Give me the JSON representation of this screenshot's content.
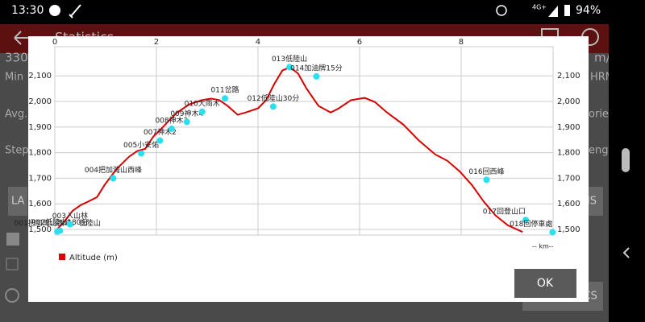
{
  "status_bar": {
    "time": "13:30",
    "network": "4G+",
    "battery": "94%"
  },
  "background": {
    "title": "Statistics",
    "texts": [
      "330",
      "Min",
      "Avg.",
      "Step",
      "LA",
      "m/h",
      "HRM",
      "ories",
      "ength",
      "NS",
      "HICS"
    ]
  },
  "dialog": {
    "button": "OK"
  },
  "chart_data": {
    "type": "line",
    "x_label": "-- km--",
    "xlim": [
      0,
      9.81
    ],
    "ylim": [
      1478,
      2214
    ],
    "xticks": [
      0,
      2,
      4,
      6,
      8
    ],
    "yticks": [
      {
        "value": 1500,
        "label": "1,500"
      },
      {
        "value": 1600,
        "label": "1,600"
      },
      {
        "value": 1700,
        "label": "1,700"
      },
      {
        "value": 1800,
        "label": "1,800"
      },
      {
        "value": 1900,
        "label": "1,900"
      },
      {
        "value": 2000,
        "label": "2,000"
      },
      {
        "value": 2100,
        "label": "2,100"
      }
    ],
    "grid": true,
    "series": [
      {
        "name": "Altitude (m)",
        "color": "#d60000",
        "x": [
          0,
          0.19,
          0.35,
          0.51,
          0.67,
          0.83,
          0.98,
          1.22,
          1.46,
          1.62,
          1.78,
          1.94,
          2.1,
          2.25,
          2.41,
          2.65,
          2.89,
          3.08,
          3.24,
          3.4,
          3.6,
          3.76,
          4.0,
          4.16,
          4.32,
          4.48,
          4.63,
          4.79,
          4.95,
          5.19,
          5.43,
          5.59,
          5.83,
          6.1,
          6.3,
          6.54,
          6.86,
          7.17,
          7.49,
          7.73,
          7.97,
          8.21,
          8.44,
          8.68,
          8.92,
          9.21
        ],
        "values": [
          1490,
          1532,
          1573,
          1595,
          1610,
          1626,
          1674,
          1737,
          1784,
          1806,
          1815,
          1863,
          1894,
          1926,
          1957,
          1989,
          2005,
          2011,
          2005,
          1983,
          1948,
          1957,
          1973,
          2005,
          2068,
          2121,
          2134,
          2109,
          2052,
          1983,
          1957,
          1973,
          2005,
          2014,
          1998,
          1957,
          1910,
          1847,
          1793,
          1768,
          1727,
          1674,
          1610,
          1554,
          1516,
          1490
        ]
      }
    ],
    "waypoints": {
      "color": "#29e0f0",
      "names": [
        "001把加灣山西峰、低陸山",
        "002低陸山180分",
        "003入山林",
        "004把加灣山西峰",
        "005小安佑",
        "007神木2",
        "008神木3",
        "009神木4",
        "010大雨木",
        "011岔路",
        "012低陸山30分",
        "013低陸山",
        "014加油牌15分",
        "016回西峰",
        "017回登山口",
        "018回停車處"
      ],
      "x": [
        0.05,
        0.1,
        0.3,
        1.15,
        1.7,
        2.07,
        2.3,
        2.6,
        2.9,
        3.35,
        4.3,
        4.62,
        5.15,
        8.5,
        9.27,
        9.8
      ],
      "values": [
        1492,
        1495,
        1520,
        1700,
        1797,
        1847,
        1893,
        1920,
        1960,
        2012,
        1980,
        2134,
        2098,
        1694,
        1537,
        1489
      ]
    }
  }
}
